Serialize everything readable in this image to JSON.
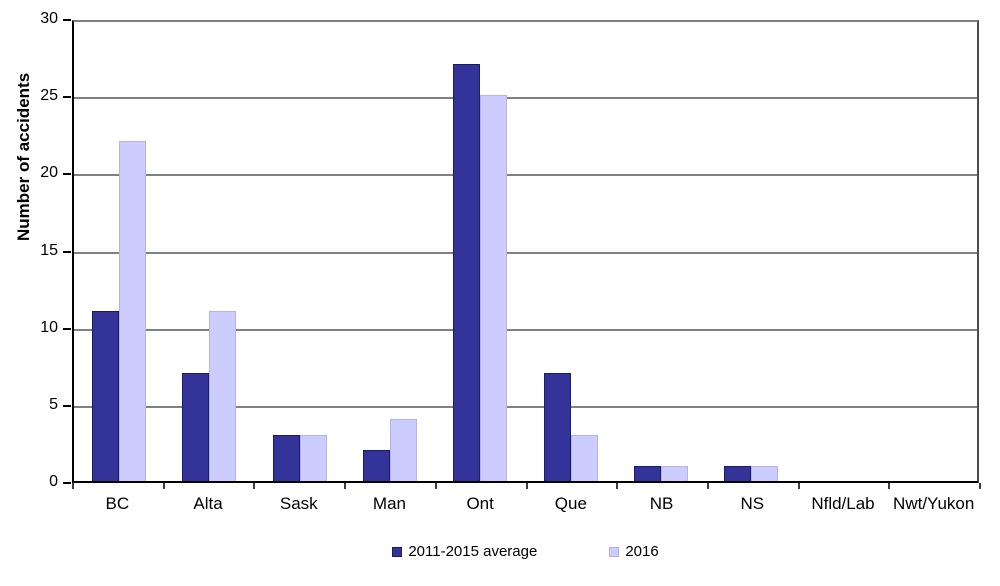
{
  "chart_data": {
    "type": "bar",
    "ylabel": "Number of accidents",
    "xlabel": "",
    "categories": [
      "BC",
      "Alta",
      "Sask",
      "Man",
      "Ont",
      "Que",
      "NB",
      "NS",
      "Nfld/Lab",
      "Nwt/Yukon"
    ],
    "series": [
      {
        "name": "2011-2015 average",
        "color": "#333399",
        "border_color": "#1a1a66",
        "values": [
          11,
          7,
          3,
          2,
          27,
          7,
          1,
          1,
          0,
          0
        ]
      },
      {
        "name": "2016",
        "color": "#ccccff",
        "border_color": "#b3b3e8",
        "values": [
          22,
          11,
          3,
          4,
          25,
          3,
          1,
          1,
          0,
          0
        ]
      }
    ],
    "ylim": [
      0,
      30
    ],
    "yticks": [
      0,
      5,
      10,
      15,
      20,
      25,
      30
    ],
    "grid": "horizontal",
    "gridline_color": "#808080",
    "axis_color": "#000000",
    "background_color": "#ffffff",
    "legend_position": "bottom"
  }
}
